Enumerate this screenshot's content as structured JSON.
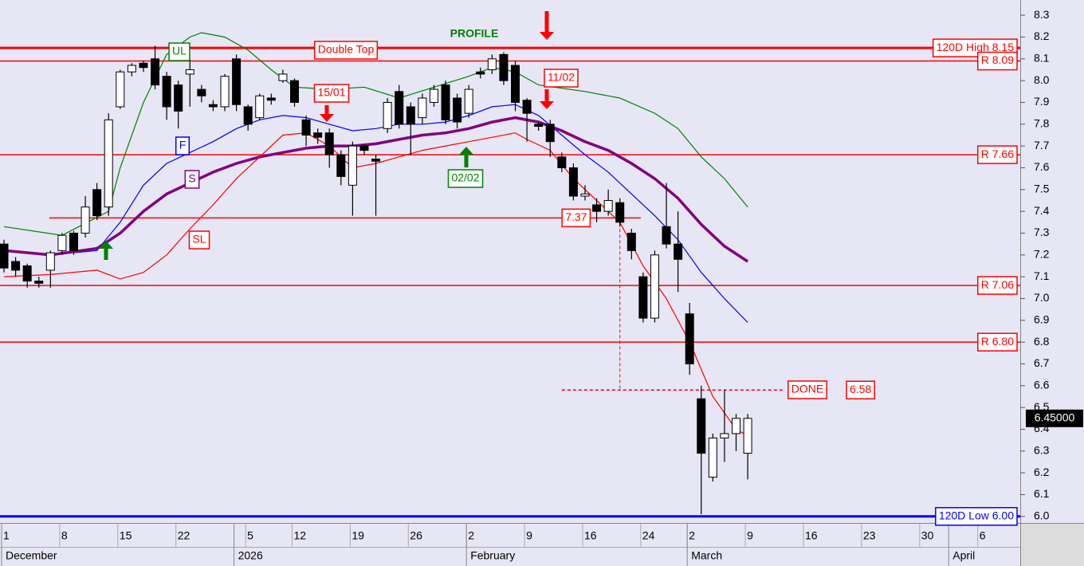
{
  "chart_data": {
    "type": "candlestick",
    "open": [
      7.25,
      7.17,
      7.15,
      7.08,
      7.13,
      7.22,
      7.3,
      7.3,
      7.5,
      7.42,
      7.88,
      8.04,
      8.08,
      8.1,
      8.02,
      7.98,
      8.03,
      7.96,
      7.89,
      7.88,
      8.1,
      7.88,
      7.83,
      7.92,
      8.0,
      8.0,
      7.82,
      7.76,
      7.76,
      7.66,
      7.52,
      7.7,
      7.64,
      7.78,
      7.95,
      7.88,
      7.83,
      7.9,
      7.98,
      7.92,
      7.85,
      8.04,
      8.05,
      8.12,
      8.07,
      7.91,
      7.8,
      7.8,
      7.65,
      7.6,
      7.47,
      7.43,
      7.4,
      7.44,
      7.3,
      7.1,
      6.91,
      7.33,
      7.25,
      6.93,
      6.54,
      6.18,
      6.36,
      6.38,
      6.29
    ],
    "high": [
      7.27,
      7.19,
      7.16,
      7.1,
      7.22,
      7.3,
      7.31,
      7.47,
      7.53,
      7.85,
      8.05,
      8.08,
      8.09,
      8.16,
      8.04,
      8.0,
      8.1,
      7.98,
      7.91,
      8.03,
      8.12,
      7.89,
      7.94,
      7.94,
      8.05,
      8.01,
      7.84,
      7.78,
      7.78,
      7.68,
      7.72,
      7.71,
      7.66,
      7.92,
      7.98,
      7.9,
      7.94,
      7.98,
      8.0,
      7.94,
      7.98,
      8.06,
      8.12,
      8.13,
      8.09,
      7.92,
      7.81,
      7.82,
      7.67,
      7.62,
      7.52,
      7.46,
      7.5,
      7.46,
      7.32,
      7.12,
      7.22,
      7.53,
      7.4,
      6.98,
      6.6,
      6.38,
      6.58,
      6.47,
      6.47
    ],
    "low": [
      7.12,
      7.1,
      7.05,
      7.05,
      7.05,
      7.2,
      7.2,
      7.28,
      7.36,
      7.38,
      7.87,
      8.02,
      8.04,
      7.96,
      7.82,
      7.78,
      7.88,
      7.9,
      7.86,
      7.86,
      7.86,
      7.77,
      7.82,
      7.89,
      7.99,
      7.88,
      7.7,
      7.71,
      7.6,
      7.52,
      7.38,
      7.66,
      7.38,
      7.76,
      7.78,
      7.66,
      7.8,
      7.88,
      7.8,
      7.78,
      7.83,
      8.01,
      8.03,
      7.98,
      7.86,
      7.72,
      7.77,
      7.65,
      7.58,
      7.45,
      7.45,
      7.35,
      7.38,
      7.33,
      7.18,
      6.89,
      6.89,
      7.23,
      7.03,
      6.65,
      6.01,
      6.16,
      6.25,
      6.3,
      6.17
    ],
    "close": [
      7.14,
      7.13,
      7.08,
      7.07,
      7.21,
      7.29,
      7.22,
      7.42,
      7.38,
      7.82,
      8.04,
      8.07,
      8.06,
      7.98,
      7.88,
      7.86,
      8.05,
      7.93,
      7.88,
      8.02,
      7.89,
      7.8,
      7.93,
      7.91,
      8.03,
      7.9,
      7.75,
      7.74,
      7.66,
      7.56,
      7.7,
      7.68,
      7.63,
      7.9,
      7.8,
      7.8,
      7.92,
      7.96,
      7.82,
      7.81,
      7.96,
      8.03,
      8.1,
      8.0,
      7.9,
      7.85,
      7.79,
      7.72,
      7.6,
      7.47,
      7.48,
      7.4,
      7.45,
      7.35,
      7.22,
      6.91,
      7.2,
      7.25,
      7.18,
      6.7,
      6.29,
      6.36,
      6.38,
      6.45,
      6.45
    ],
    "series": [
      {
        "name": "UL",
        "color": "#008000",
        "x": [
          0,
          5,
          9,
          10,
          12,
          14,
          16,
          17,
          19,
          21,
          23,
          25,
          28,
          31,
          34,
          37,
          40,
          42,
          44,
          46,
          50,
          53,
          56,
          58,
          60,
          62,
          64
        ],
        "values": [
          7.33,
          7.29,
          7.4,
          7.6,
          7.9,
          8.12,
          8.2,
          8.22,
          8.2,
          8.14,
          8.05,
          7.97,
          7.96,
          7.97,
          7.92,
          7.97,
          8.02,
          8.06,
          8.04,
          7.98,
          7.95,
          7.92,
          7.85,
          7.78,
          7.65,
          7.55,
          7.42
        ]
      },
      {
        "name": "F",
        "color": "#0000ff",
        "x": [
          0,
          4,
          8,
          10,
          12,
          14,
          16,
          18,
          20,
          22,
          24,
          26,
          28,
          30,
          32,
          34,
          36,
          38,
          40,
          42,
          44,
          46,
          48,
          50,
          52,
          54,
          56,
          58,
          60,
          62,
          64
        ],
        "values": [
          7.22,
          7.2,
          7.22,
          7.35,
          7.52,
          7.62,
          7.67,
          7.72,
          7.78,
          7.82,
          7.84,
          7.83,
          7.8,
          7.77,
          7.78,
          7.8,
          7.8,
          7.81,
          7.84,
          7.88,
          7.89,
          7.84,
          7.75,
          7.66,
          7.58,
          7.48,
          7.38,
          7.27,
          7.12,
          7.0,
          6.89
        ]
      },
      {
        "name": "S",
        "color": "#800080",
        "x": [
          0,
          4,
          8,
          10,
          12,
          14,
          16,
          18,
          20,
          22,
          24,
          26,
          28,
          30,
          32,
          34,
          36,
          38,
          40,
          42,
          44,
          46,
          48,
          50,
          52,
          54,
          56,
          58,
          60,
          62,
          64
        ],
        "values": [
          7.22,
          7.2,
          7.23,
          7.3,
          7.4,
          7.48,
          7.53,
          7.58,
          7.62,
          7.65,
          7.67,
          7.69,
          7.7,
          7.7,
          7.71,
          7.73,
          7.75,
          7.76,
          7.78,
          7.81,
          7.83,
          7.81,
          7.77,
          7.72,
          7.68,
          7.62,
          7.55,
          7.46,
          7.34,
          7.24,
          7.17
        ]
      },
      {
        "name": "SL",
        "color": "#ff0000",
        "x": [
          0,
          4,
          8,
          10,
          12,
          14,
          16,
          18,
          20,
          22,
          24,
          26,
          28,
          30,
          32,
          34,
          36,
          38,
          40,
          42,
          44,
          45,
          47,
          49,
          51,
          53,
          55,
          57,
          59,
          61,
          63,
          64
        ],
        "values": [
          7.1,
          7.11,
          7.13,
          7.09,
          7.12,
          7.2,
          7.32,
          7.43,
          7.55,
          7.65,
          7.75,
          7.76,
          7.7,
          7.6,
          7.62,
          7.65,
          7.68,
          7.7,
          7.72,
          7.74,
          7.76,
          7.73,
          7.68,
          7.55,
          7.45,
          7.35,
          7.15,
          7.0,
          6.8,
          6.55,
          6.4,
          6.37
        ]
      }
    ],
    "levels": [
      {
        "value": 8.15,
        "label": "120D High 8.15",
        "color": "#ff0000"
      },
      {
        "value": 8.09,
        "label": "R 8.09",
        "color": "#ff0000"
      },
      {
        "value": 7.66,
        "label": "R 7.66",
        "color": "#ff0000"
      },
      {
        "value": 7.37,
        "label": "7.37",
        "color": "#ff0000"
      },
      {
        "value": 7.06,
        "label": "R 7.06",
        "color": "#ff0000"
      },
      {
        "value": 6.8,
        "label": "R 6.80",
        "color": "#ff0000"
      },
      {
        "value": 6.58,
        "label": "6.58",
        "color": "#ff0000"
      },
      {
        "value": 6.0,
        "label": "120D Low 6.00",
        "color": "#0000ff"
      }
    ],
    "annotations": [
      "Double Top",
      "PROFILE",
      "15/01",
      "11/02",
      "02/02",
      "DONE"
    ],
    "last_price": {
      "value": 6.45,
      "label": "6.45000"
    },
    "xlim": [
      -0.343,
      87.45
    ],
    "xticks": [
      {
        "value": 0,
        "label": "1"
      },
      {
        "value": 5,
        "label": "8"
      },
      {
        "value": 10,
        "label": "15"
      },
      {
        "value": 15,
        "label": "22"
      },
      {
        "value": 21,
        "label": "5"
      },
      {
        "value": 25,
        "label": "12"
      },
      {
        "value": 30,
        "label": "19"
      },
      {
        "value": 35,
        "label": "26"
      },
      {
        "value": 40,
        "label": "2"
      },
      {
        "value": 45,
        "label": "9"
      },
      {
        "value": 50,
        "label": "16"
      },
      {
        "value": 55,
        "label": "24"
      },
      {
        "value": 59,
        "label": "2"
      },
      {
        "value": 64,
        "label": "9"
      },
      {
        "value": 69,
        "label": "16"
      },
      {
        "value": 74,
        "label": "23"
      },
      {
        "value": 79,
        "label": "30"
      },
      {
        "value": 84,
        "label": "6"
      }
    ],
    "months": [
      {
        "value": 0,
        "label": "December"
      },
      {
        "value": 20,
        "label": "2026"
      },
      {
        "value": 40,
        "label": "February"
      },
      {
        "value": 59,
        "label": "March"
      },
      {
        "value": 81.5,
        "label": "April"
      }
    ],
    "ylim": [
      5.97,
      8.37
    ],
    "yticks": [
      {
        "value": 6.0,
        "label": "6.0"
      },
      6.1,
      6.2,
      6.3,
      6.4,
      6.5,
      6.6,
      6.7,
      6.8,
      6.9,
      {
        "value": 7.0,
        "label": "7.0"
      },
      7.1,
      7.2,
      7.3,
      7.4,
      7.5,
      7.6,
      7.7,
      7.8,
      7.9,
      {
        "value": 8.0,
        "label": "8.0"
      },
      8.1,
      8.2,
      8.3
    ]
  }
}
